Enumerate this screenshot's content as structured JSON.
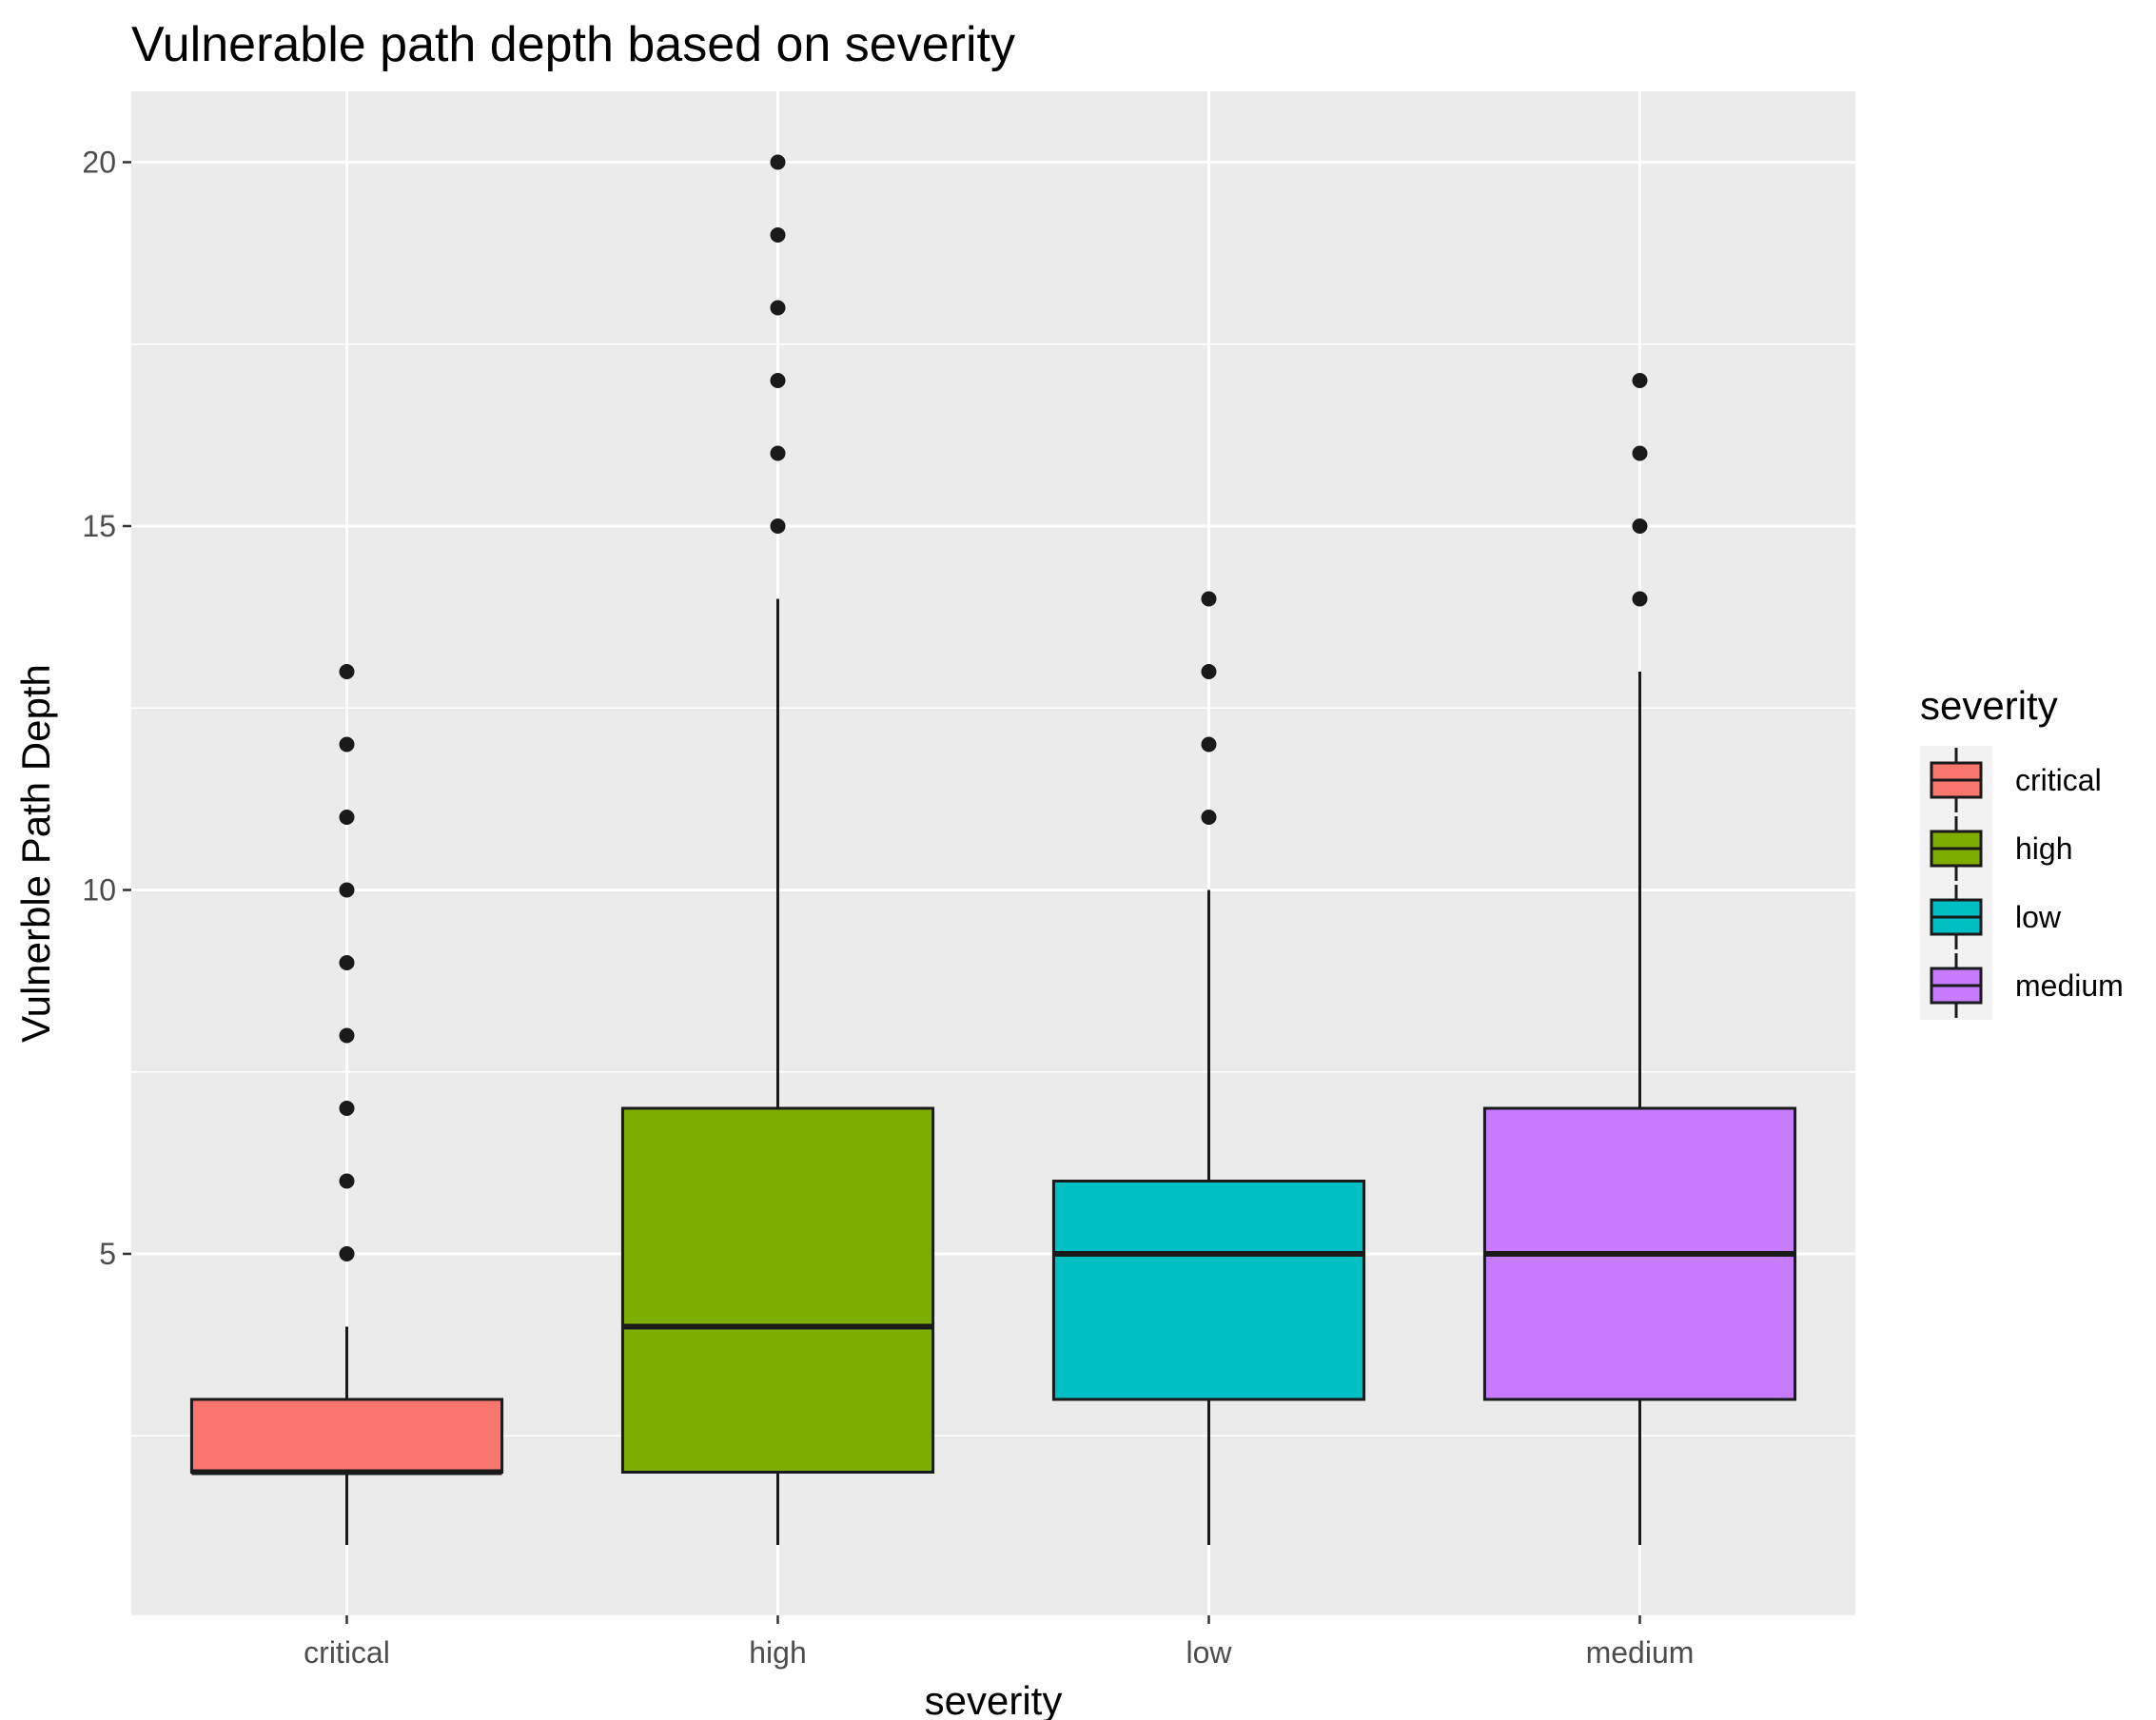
{
  "chart_data": {
    "type": "boxplot",
    "title": "Vulnerable path depth based on severity",
    "xlabel": "severity",
    "ylabel": "Vulnerble Path Depth",
    "ylim": [
      0,
      21
    ],
    "yticks": [
      5,
      10,
      15,
      20
    ],
    "grid": true,
    "legend": {
      "title": "severity",
      "position": "right"
    },
    "categories": [
      "critical",
      "high",
      "low",
      "medium"
    ],
    "series": [
      {
        "name": "critical",
        "color": "#F8766D",
        "whisker_low": 1,
        "q1": 2,
        "median": 2,
        "q3": 3,
        "whisker_high": 4,
        "outliers": [
          5,
          6,
          7,
          8,
          9,
          10,
          11,
          12,
          13
        ]
      },
      {
        "name": "high",
        "color": "#7CAE00",
        "whisker_low": 1,
        "q1": 2,
        "median": 4,
        "q3": 7,
        "whisker_high": 14,
        "outliers": [
          15,
          16,
          17,
          18,
          19,
          20
        ]
      },
      {
        "name": "low",
        "color": "#00BFC4",
        "whisker_low": 1,
        "q1": 3,
        "median": 5,
        "q3": 6,
        "whisker_high": 10,
        "outliers": [
          11,
          12,
          13,
          14
        ]
      },
      {
        "name": "medium",
        "color": "#C77CFF",
        "whisker_low": 1,
        "q1": 3,
        "median": 5,
        "q3": 7,
        "whisker_high": 13,
        "outliers": [
          14,
          15,
          16,
          17
        ]
      }
    ]
  }
}
